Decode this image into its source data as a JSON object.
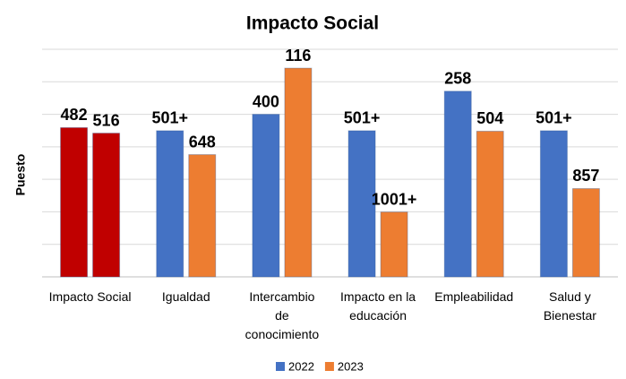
{
  "chart_data": {
    "type": "bar",
    "title": "Impacto Social",
    "ylabel": "Puesto",
    "categories": [
      "Impacto Social",
      "Igualdad",
      "Intercambio de conocimiento",
      "Impacto en la educación",
      "Empleabilidad",
      "Salud y Bienestar"
    ],
    "series": [
      {
        "name": "2022",
        "color": "#4472c4",
        "colors": [
          "#c00000",
          "#4472c4",
          "#4472c4",
          "#4472c4",
          "#4472c4",
          "#4472c4"
        ],
        "values": [
          482,
          501,
          400,
          501,
          258,
          501
        ],
        "value_labels": [
          "482",
          "501+",
          "400",
          "501+",
          "258",
          "501+"
        ]
      },
      {
        "name": "2023",
        "color": "#ed7d31",
        "colors": [
          "#c00000",
          "#ed7d31",
          "#ed7d31",
          "#ed7d31",
          "#ed7d31",
          "#ed7d31"
        ],
        "values": [
          516,
          648,
          116,
          1001,
          504,
          857
        ],
        "value_labels": [
          "516",
          "648",
          "116",
          "1001+",
          "504",
          "857"
        ]
      }
    ],
    "ylim": [
      1400,
      0
    ],
    "yticks": [
      1400,
      1200,
      1000,
      800,
      600,
      400,
      200,
      0
    ],
    "grid": true,
    "legend": "bottom"
  }
}
